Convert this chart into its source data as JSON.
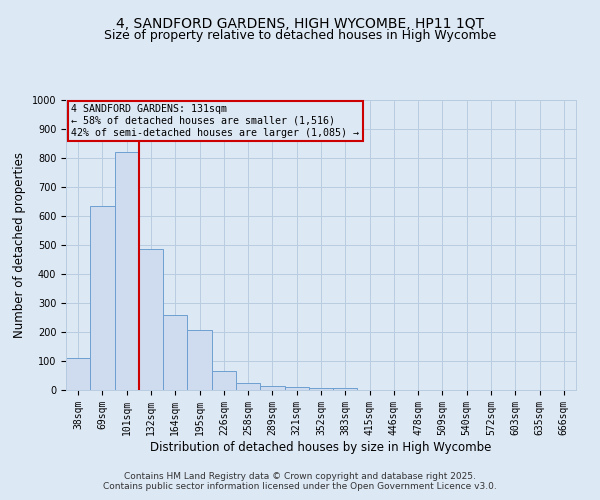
{
  "title1": "4, SANDFORD GARDENS, HIGH WYCOMBE, HP11 1QT",
  "title2": "Size of property relative to detached houses in High Wycombe",
  "xlabel": "Distribution of detached houses by size in High Wycombe",
  "ylabel": "Number of detached properties",
  "categories": [
    "38sqm",
    "69sqm",
    "101sqm",
    "132sqm",
    "164sqm",
    "195sqm",
    "226sqm",
    "258sqm",
    "289sqm",
    "321sqm",
    "352sqm",
    "383sqm",
    "415sqm",
    "446sqm",
    "478sqm",
    "509sqm",
    "540sqm",
    "572sqm",
    "603sqm",
    "635sqm",
    "666sqm"
  ],
  "bar_heights": [
    110,
    635,
    820,
    485,
    258,
    208,
    65,
    25,
    15,
    11,
    8,
    8,
    0,
    0,
    0,
    0,
    0,
    0,
    0,
    0,
    0
  ],
  "bar_color": "#cfdcef",
  "bar_edge_color": "#6e9fd1",
  "red_line_index": 2.5,
  "annotation_text": "4 SANDFORD GARDENS: 131sqm\n← 58% of detached houses are smaller (1,516)\n42% of semi-detached houses are larger (1,085) →",
  "annotation_box_color": "#cc0000",
  "ylim": [
    0,
    1000
  ],
  "yticks": [
    0,
    100,
    200,
    300,
    400,
    500,
    600,
    700,
    800,
    900,
    1000
  ],
  "grid_color": "#b8cce0",
  "background_color": "#dde8f5",
  "footer1": "Contains HM Land Registry data © Crown copyright and database right 2025.",
  "footer2": "Contains public sector information licensed under the Open Government Licence v3.0.",
  "title_fontsize": 10,
  "subtitle_fontsize": 9,
  "tick_fontsize": 7,
  "label_fontsize": 8.5,
  "footer_fontsize": 6.5
}
